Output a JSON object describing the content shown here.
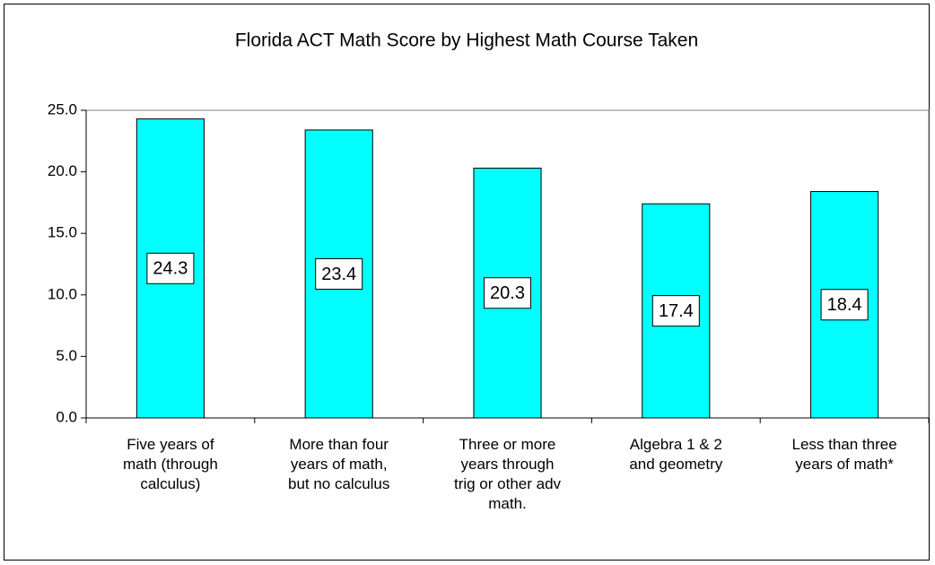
{
  "chart_data": {
    "type": "bar",
    "title": "Florida ACT Math Score by Highest Math Course Taken",
    "categories": [
      "Five years of math (through calculus)",
      "More than four years of math, but no calculus",
      "Three or more years through trig or other adv math.",
      "Algebra 1 & 2 and geometry",
      "Less than three years of math*"
    ],
    "values": [
      24.3,
      23.4,
      20.3,
      17.4,
      18.4
    ],
    "color": "#00ffff",
    "ylim": [
      0,
      25
    ],
    "yticks": [
      {
        "value": 0,
        "label": "0.0"
      },
      {
        "value": 5,
        "label": "5.0"
      },
      {
        "value": 10,
        "label": "10.0"
      },
      {
        "value": 15,
        "label": "15.0"
      },
      {
        "value": 20,
        "label": "20.0"
      },
      {
        "value": 25,
        "label": "25.0"
      }
    ],
    "grid": false
  }
}
